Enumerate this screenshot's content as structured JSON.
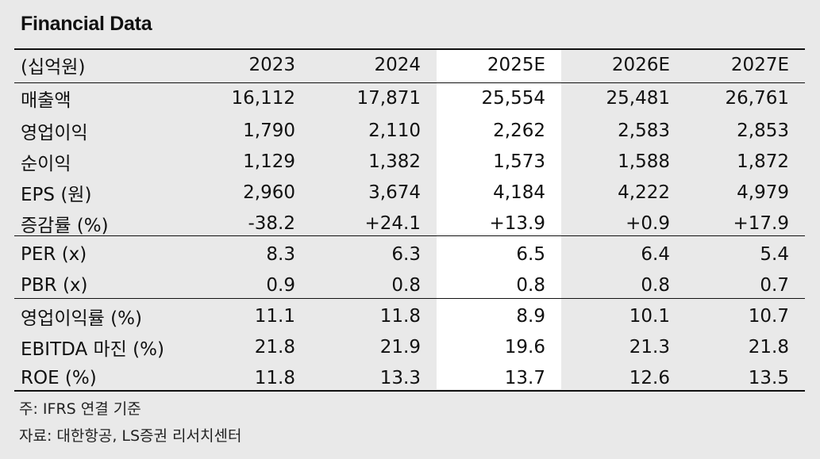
{
  "title": "Financial Data",
  "columns": [
    "(십억원)",
    "2023",
    "2024",
    "2025E",
    "2026E",
    "2027E"
  ],
  "rows": [
    {
      "label": "매출액",
      "values": [
        "16,112",
        "17,871",
        "25,554",
        "25,481",
        "26,761"
      ]
    },
    {
      "label": "영업이익",
      "values": [
        "1,790",
        "2,110",
        "2,262",
        "2,583",
        "2,853"
      ]
    },
    {
      "label": "순이익",
      "values": [
        "1,129",
        "1,382",
        "1,573",
        "1,588",
        "1,872"
      ]
    },
    {
      "label": "EPS (원)",
      "values": [
        "2,960",
        "3,674",
        "4,184",
        "4,222",
        "4,979"
      ]
    },
    {
      "label": "증감률 (%)",
      "values": [
        "-38.2",
        "+24.1",
        "+13.9",
        "+0.9",
        "+17.9"
      ]
    },
    {
      "label": "PER (x)",
      "values": [
        "8.3",
        "6.3",
        "6.5",
        "6.4",
        "5.4"
      ]
    },
    {
      "label": "PBR (x)",
      "values": [
        "0.9",
        "0.8",
        "0.8",
        "0.8",
        "0.7"
      ]
    },
    {
      "label": "영업이익률 (%)",
      "values": [
        "11.1",
        "11.8",
        "8.9",
        "10.1",
        "10.7"
      ]
    },
    {
      "label": "EBITDA 마진 (%)",
      "values": [
        "21.8",
        "21.9",
        "19.6",
        "21.3",
        "21.8"
      ]
    },
    {
      "label": "ROE (%)",
      "values": [
        "11.8",
        "13.3",
        "13.7",
        "12.6",
        "13.5"
      ]
    }
  ],
  "notes": {
    "basis": "주: IFRS 연결 기준",
    "source": "자료: 대한항공, LS증권 리서치센터"
  },
  "colors": {
    "background": "#e9e9e9",
    "highlight_column": "#ffffff",
    "text": "#111111"
  }
}
